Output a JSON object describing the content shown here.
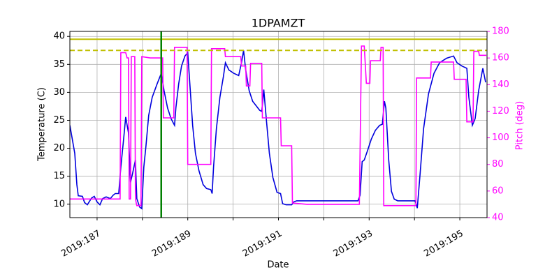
{
  "chart_data": {
    "type": "line",
    "title": "1DPAMZT",
    "xlabel": "Date",
    "ylabel": "Temperature (C)",
    "y2label": "Pitch (deg)",
    "xlim": [
      186.4,
      195.6
    ],
    "ylim": [
      7.6,
      40.9
    ],
    "y2lim": [
      40,
      180
    ],
    "xticks": [
      {
        "value": 187,
        "label": "2019:187"
      },
      {
        "value": 189,
        "label": "2019:189"
      },
      {
        "value": 191,
        "label": "2019:191"
      },
      {
        "value": 193,
        "label": "2019:193"
      },
      {
        "value": 195,
        "label": "2019:195"
      }
    ],
    "xticks_unlabeled": [
      188,
      190,
      192,
      194
    ],
    "yticks": [
      10,
      15,
      20,
      25,
      30,
      35,
      40
    ],
    "y2ticks": [
      40,
      60,
      80,
      100,
      120,
      140,
      160,
      180
    ],
    "y2color": "#ff00ff",
    "grid": true,
    "hlines": [
      {
        "value": 39.5,
        "color": "#bfbf00",
        "style": "solid"
      },
      {
        "value": 37.5,
        "color": "#bfbf00",
        "style": "dashed"
      }
    ],
    "vlines": [
      {
        "value": 188.415,
        "color": "#008000"
      }
    ],
    "series": [
      {
        "color": "#0000dd",
        "axis": "y",
        "x": [
          186.4,
          186.508,
          186.554,
          186.585,
          186.677,
          186.723,
          186.785,
          186.877,
          186.938,
          187.0,
          187.062,
          187.123,
          187.2,
          187.292,
          187.354,
          187.4,
          187.477,
          187.523,
          187.585,
          187.631,
          187.692,
          187.738,
          187.785,
          187.846,
          187.877,
          187.938,
          187.985,
          188.031,
          188.077,
          188.138,
          188.215,
          188.323,
          188.415,
          188.477,
          188.554,
          188.631,
          188.708,
          188.738,
          188.8,
          188.862,
          188.938,
          189.0,
          189.046,
          189.108,
          189.169,
          189.246,
          189.338,
          189.415,
          189.508,
          189.538,
          189.569,
          189.631,
          189.708,
          189.785,
          189.831,
          189.908,
          190.015,
          190.123,
          190.185,
          190.231,
          190.277,
          190.354,
          190.431,
          190.508,
          190.585,
          190.631,
          190.677,
          190.738,
          190.8,
          190.877,
          190.969,
          191.046,
          191.092,
          191.169,
          191.292,
          191.338,
          191.4,
          192.754,
          192.8,
          192.846,
          192.892,
          192.969,
          193.046,
          193.138,
          193.231,
          193.292,
          193.338,
          193.369,
          193.431,
          193.492,
          193.554,
          193.631,
          194.015,
          194.062,
          194.123,
          194.2,
          194.308,
          194.431,
          194.554,
          194.708,
          194.862,
          194.938,
          195.046,
          195.154,
          195.2,
          195.277,
          195.338,
          195.415,
          195.508,
          195.569
        ],
        "values": [
          24.1,
          19.1,
          13.5,
          11.5,
          11.4,
          10.3,
          9.9,
          11.1,
          11.4,
          10.4,
          9.9,
          11.0,
          11.3,
          11.0,
          11.6,
          11.9,
          11.9,
          16.6,
          21.6,
          25.6,
          22.8,
          13.9,
          15.6,
          17.9,
          11.0,
          9.5,
          9.2,
          16.6,
          20.3,
          25.9,
          29.1,
          31.5,
          33.4,
          30.3,
          27.2,
          25.3,
          24.1,
          27.2,
          31.5,
          34.7,
          36.5,
          37.1,
          31.5,
          24.1,
          19.1,
          16.0,
          13.5,
          12.8,
          12.6,
          11.9,
          16.6,
          23.5,
          29.1,
          32.8,
          35.3,
          34.0,
          33.4,
          33.0,
          35.3,
          37.5,
          34.0,
          30.3,
          28.4,
          27.6,
          26.8,
          26.6,
          30.5,
          24.7,
          19.1,
          14.8,
          12.1,
          11.9,
          10.1,
          9.9,
          9.9,
          10.4,
          10.6,
          10.6,
          11.6,
          17.6,
          17.9,
          19.7,
          21.6,
          23.2,
          24.1,
          24.3,
          28.4,
          27.2,
          17.9,
          12.3,
          10.9,
          10.6,
          10.6,
          9.3,
          15.4,
          23.5,
          29.7,
          33.4,
          35.3,
          36.1,
          36.5,
          35.3,
          34.7,
          34.3,
          29.1,
          24.1,
          25.3,
          30.3,
          34.3,
          31.8
        ]
      },
      {
        "color": "#ff00ff",
        "axis": "y2",
        "x": [
          186.4,
          187.508,
          187.523,
          187.631,
          187.662,
          187.692,
          187.708,
          187.738,
          187.754,
          187.831,
          187.846,
          187.877,
          187.969,
          187.985,
          188.169,
          188.446,
          188.462,
          188.692,
          188.708,
          188.985,
          189.0,
          189.508,
          189.523,
          189.815,
          189.831,
          190.169,
          190.185,
          190.277,
          190.292,
          190.369,
          190.385,
          190.631,
          190.646,
          191.046,
          191.062,
          191.292,
          191.308,
          191.631,
          192.785,
          192.831,
          192.892,
          192.938,
          193.015,
          193.031,
          193.246,
          193.262,
          193.308,
          193.323,
          194.031,
          194.046,
          194.354,
          194.369,
          194.862,
          194.877,
          195.138,
          195.154,
          195.292,
          195.308,
          195.415,
          195.431,
          195.585
        ],
        "values": [
          54,
          54,
          164,
          164,
          160,
          160,
          54,
          54,
          161,
          161,
          54,
          49,
          49,
          161,
          160,
          160,
          115,
          115,
          168,
          168,
          80,
          80,
          167,
          167,
          161,
          161,
          154,
          154,
          139,
          139,
          156,
          156,
          115,
          115,
          94,
          94,
          51,
          50,
          50,
          169,
          169,
          141,
          141,
          158,
          158,
          168,
          168,
          49,
          49,
          145,
          145,
          157,
          157,
          144,
          144,
          112,
          112,
          165,
          165,
          162,
          162
        ]
      }
    ]
  }
}
